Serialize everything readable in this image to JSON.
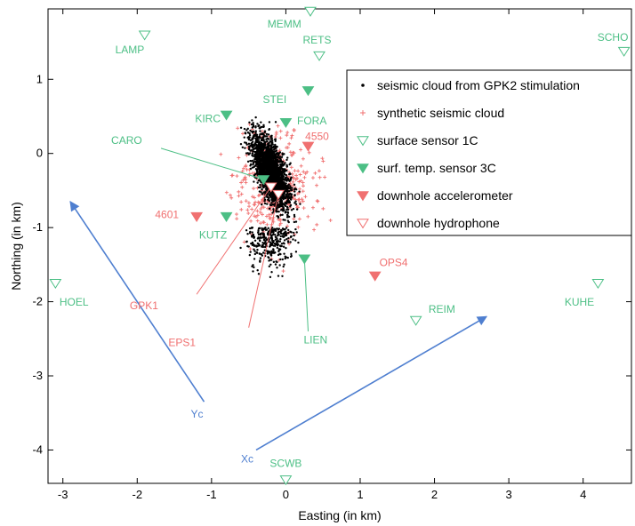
{
  "chart_data": {
    "type": "scatter",
    "title": "",
    "xlabel": "Easting (in km)",
    "ylabel": "Northing (in km)",
    "xlim": [
      -3.2,
      4.65
    ],
    "ylim": [
      -4.45,
      1.95
    ],
    "xticks": [
      -3,
      -2,
      -1,
      0,
      1,
      2,
      3,
      4
    ],
    "yticks": [
      -4,
      -3,
      -2,
      -1,
      0,
      1
    ],
    "grid": false,
    "legend_position": "top-right",
    "colors": {
      "black": "#000000",
      "red": "#f07070",
      "green": "#4cbf85",
      "blue": "#4f7fd0"
    },
    "legend": [
      {
        "label": "seismic cloud from GPK2 stimulation",
        "marker": "dot",
        "color": "#000000"
      },
      {
        "label": "synthetic seismic cloud",
        "marker": "plus",
        "color": "#f07070"
      },
      {
        "label": "surface sensor 1C",
        "marker": "tri-down-open",
        "color": "#4cbf85"
      },
      {
        "label": "surf. temp. sensor 3C",
        "marker": "tri-down-filled",
        "color": "#4cbf85"
      },
      {
        "label": "downhole accelerometer",
        "marker": "tri-down-filled",
        "color": "#f07070"
      },
      {
        "label": "downhole hydrophone",
        "marker": "tri-down-open",
        "color": "#f07070"
      }
    ],
    "seismic_cloud": {
      "center": [
        -0.2,
        -0.25
      ],
      "extent_x": [
        -0.7,
        0.3
      ],
      "extent_y": [
        -1.9,
        0.5
      ]
    },
    "synthetic_cloud": {
      "center": [
        -0.15,
        -0.45
      ],
      "extent_x": [
        -1.3,
        1.0
      ],
      "extent_y": [
        -2.05,
        0.5
      ]
    },
    "sensors": [
      {
        "name": "MEMM",
        "x": 0.33,
        "y": 1.92,
        "type": "surface1C"
      },
      {
        "name": "LAMP",
        "x": -1.9,
        "y": 1.6,
        "type": "surface1C"
      },
      {
        "name": "RETS",
        "x": 0.45,
        "y": 1.32,
        "type": "surface1C"
      },
      {
        "name": "SCHO",
        "x": 4.55,
        "y": 1.38,
        "type": "surface1C"
      },
      {
        "name": "HOEL",
        "x": -3.1,
        "y": -1.75,
        "type": "surface1C"
      },
      {
        "name": "KUHE",
        "x": 4.2,
        "y": -1.75,
        "type": "surface1C"
      },
      {
        "name": "REIM",
        "x": 1.75,
        "y": -2.25,
        "type": "surface1C"
      },
      {
        "name": "SCWB",
        "x": 0.0,
        "y": -4.4,
        "type": "surface1C"
      },
      {
        "name": "STEI",
        "x": 0.3,
        "y": 0.85,
        "type": "temp3C"
      },
      {
        "name": "KIRC",
        "x": -0.8,
        "y": 0.52,
        "type": "temp3C"
      },
      {
        "name": "FORA",
        "x": 0.0,
        "y": 0.42,
        "type": "temp3C"
      },
      {
        "name": "CARO",
        "x": -0.3,
        "y": -0.35,
        "type": "temp3C"
      },
      {
        "name": "KUTZ",
        "x": -0.8,
        "y": -0.85,
        "type": "temp3C"
      },
      {
        "name": "LIEN",
        "x": 0.25,
        "y": -1.42,
        "type": "temp3C"
      },
      {
        "name": "4550",
        "x": 0.3,
        "y": 0.1,
        "type": "accelerometer"
      },
      {
        "name": "4601",
        "x": -1.2,
        "y": -0.85,
        "type": "accelerometer"
      },
      {
        "name": "OPS4",
        "x": 1.2,
        "y": -1.65,
        "type": "accelerometer"
      },
      {
        "name": "GPK1",
        "x": -0.2,
        "y": -0.45,
        "type": "hydrophone"
      },
      {
        "name": "EPS1",
        "x": -0.1,
        "y": -0.55,
        "type": "hydrophone"
      }
    ],
    "axes_arrows": [
      {
        "name": "Xc",
        "from": [
          -0.4,
          -4.0
        ],
        "to": [
          2.7,
          -2.2
        ]
      },
      {
        "name": "Yc",
        "from": [
          -1.1,
          -3.35
        ],
        "to": [
          -2.9,
          -0.65
        ]
      }
    ]
  }
}
